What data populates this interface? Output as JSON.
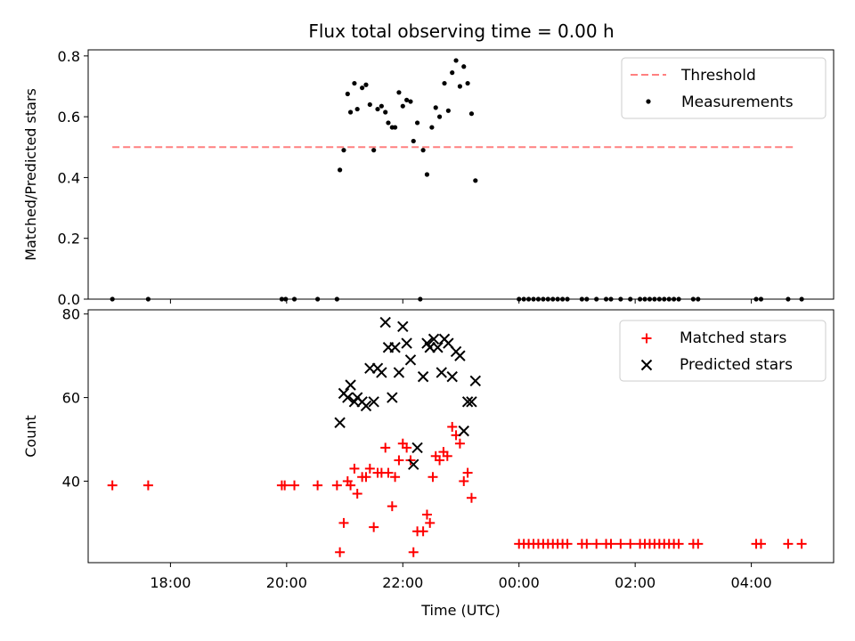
{
  "title": "Flux total observing time = 0.00 h",
  "chart_data": [
    {
      "type": "scatter",
      "ylabel": "Matched/Predicted stars",
      "ylim": [
        0,
        0.82
      ],
      "yticks": [
        0.0,
        0.2,
        0.4,
        0.6,
        0.8
      ],
      "ytick_labels": [
        "0.0",
        "0.2",
        "0.4",
        "0.6",
        "0.8"
      ],
      "legend": "top-right",
      "threshold": {
        "name": "Threshold",
        "value": 0.5,
        "x_range": [
          "17:00",
          "04:45"
        ],
        "color": "#ff8080"
      },
      "series": [
        {
          "name": "Measurements",
          "color": "#000000",
          "points": [
            [
              "17:00",
              0
            ],
            [
              "17:37",
              0
            ],
            [
              "19:55",
              0
            ],
            [
              "19:59",
              0
            ],
            [
              "20:08",
              0
            ],
            [
              "20:32",
              0
            ],
            [
              "20:52",
              0
            ],
            [
              "20:55",
              0.425
            ],
            [
              "20:59",
              0.49
            ],
            [
              "21:03",
              0.675
            ],
            [
              "21:06",
              0.615
            ],
            [
              "21:10",
              0.71
            ],
            [
              "21:13",
              0.625
            ],
            [
              "21:18",
              0.695
            ],
            [
              "21:22",
              0.705
            ],
            [
              "21:26",
              0.64
            ],
            [
              "21:30",
              0.49
            ],
            [
              "21:34",
              0.625
            ],
            [
              "21:38",
              0.635
            ],
            [
              "21:42",
              0.615
            ],
            [
              "21:45",
              0.58
            ],
            [
              "21:49",
              0.565
            ],
            [
              "21:52",
              0.565
            ],
            [
              "21:56",
              0.68
            ],
            [
              "22:00",
              0.635
            ],
            [
              "22:04",
              0.655
            ],
            [
              "22:08",
              0.65
            ],
            [
              "22:11",
              0.52
            ],
            [
              "22:15",
              0.58
            ],
            [
              "22:21",
              0.49
            ],
            [
              "22:25",
              0.41
            ],
            [
              "22:30",
              0.565
            ],
            [
              "22:34",
              0.63
            ],
            [
              "22:38",
              0.6
            ],
            [
              "22:43",
              0.71
            ],
            [
              "22:47",
              0.62
            ],
            [
              "22:51",
              0.745
            ],
            [
              "22:55",
              0.785
            ],
            [
              "22:59",
              0.7
            ],
            [
              "23:03",
              0.765
            ],
            [
              "23:07",
              0.71
            ],
            [
              "23:11",
              0.61
            ],
            [
              "23:15",
              0.39
            ],
            [
              "22:18",
              0
            ],
            [
              "00:00",
              0
            ],
            [
              "00:05",
              0
            ],
            [
              "00:10",
              0
            ],
            [
              "00:15",
              0
            ],
            [
              "00:20",
              0
            ],
            [
              "00:25",
              0
            ],
            [
              "00:30",
              0
            ],
            [
              "00:35",
              0
            ],
            [
              "00:40",
              0
            ],
            [
              "00:45",
              0
            ],
            [
              "00:50",
              0
            ],
            [
              "01:05",
              0
            ],
            [
              "01:10",
              0
            ],
            [
              "01:20",
              0
            ],
            [
              "01:30",
              0
            ],
            [
              "01:35",
              0
            ],
            [
              "01:45",
              0
            ],
            [
              "01:55",
              0
            ],
            [
              "02:05",
              0
            ],
            [
              "02:10",
              0
            ],
            [
              "02:15",
              0
            ],
            [
              "02:20",
              0
            ],
            [
              "02:25",
              0
            ],
            [
              "02:30",
              0
            ],
            [
              "02:35",
              0
            ],
            [
              "02:40",
              0
            ],
            [
              "02:45",
              0
            ],
            [
              "03:00",
              0
            ],
            [
              "03:05",
              0
            ],
            [
              "04:05",
              0
            ],
            [
              "04:10",
              0
            ],
            [
              "04:38",
              0
            ],
            [
              "04:52",
              0
            ]
          ]
        }
      ]
    },
    {
      "type": "scatter",
      "xlabel": "Time (UTC)",
      "ylabel": "Count",
      "ylim": [
        20.5,
        81
      ],
      "yticks": [
        40,
        60,
        80
      ],
      "ytick_labels": [
        "40",
        "60",
        "80"
      ],
      "xticks": [
        "18:00",
        "20:00",
        "22:00",
        "00:00",
        "02:00",
        "04:00"
      ],
      "legend": "top-right",
      "series": [
        {
          "name": "Matched stars",
          "marker": "plus",
          "color": "#ff0000",
          "points": [
            [
              "17:00",
              39
            ],
            [
              "17:37",
              39
            ],
            [
              "19:55",
              39
            ],
            [
              "19:58",
              39
            ],
            [
              "20:08",
              39
            ],
            [
              "20:32",
              39
            ],
            [
              "20:52",
              39
            ],
            [
              "20:55",
              23
            ],
            [
              "20:59",
              30
            ],
            [
              "21:03",
              40
            ],
            [
              "21:06",
              39
            ],
            [
              "21:10",
              43
            ],
            [
              "21:13",
              37
            ],
            [
              "21:18",
              41
            ],
            [
              "21:22",
              41
            ],
            [
              "21:26",
              43
            ],
            [
              "21:30",
              29
            ],
            [
              "21:34",
              42
            ],
            [
              "21:38",
              42
            ],
            [
              "21:42",
              48
            ],
            [
              "21:45",
              42
            ],
            [
              "21:49",
              34
            ],
            [
              "21:52",
              41
            ],
            [
              "21:56",
              45
            ],
            [
              "22:00",
              49
            ],
            [
              "22:04",
              48
            ],
            [
              "22:08",
              45
            ],
            [
              "22:11",
              23
            ],
            [
              "22:15",
              28
            ],
            [
              "22:21",
              28
            ],
            [
              "22:25",
              32
            ],
            [
              "22:28",
              30
            ],
            [
              "22:31",
              41
            ],
            [
              "22:34",
              46
            ],
            [
              "22:38",
              45
            ],
            [
              "22:42",
              47
            ],
            [
              "22:46",
              46
            ],
            [
              "22:51",
              53
            ],
            [
              "22:55",
              51
            ],
            [
              "22:59",
              49
            ],
            [
              "23:03",
              40
            ],
            [
              "23:07",
              42
            ],
            [
              "23:11",
              36
            ],
            [
              "00:00",
              25
            ],
            [
              "00:05",
              25
            ],
            [
              "00:10",
              25
            ],
            [
              "00:15",
              25
            ],
            [
              "00:20",
              25
            ],
            [
              "00:25",
              25
            ],
            [
              "00:30",
              25
            ],
            [
              "00:35",
              25
            ],
            [
              "00:40",
              25
            ],
            [
              "00:45",
              25
            ],
            [
              "00:50",
              25
            ],
            [
              "01:05",
              25
            ],
            [
              "01:10",
              25
            ],
            [
              "01:20",
              25
            ],
            [
              "01:30",
              25
            ],
            [
              "01:35",
              25
            ],
            [
              "01:45",
              25
            ],
            [
              "01:55",
              25
            ],
            [
              "02:05",
              25
            ],
            [
              "02:10",
              25
            ],
            [
              "02:15",
              25
            ],
            [
              "02:20",
              25
            ],
            [
              "02:25",
              25
            ],
            [
              "02:30",
              25
            ],
            [
              "02:35",
              25
            ],
            [
              "02:40",
              25
            ],
            [
              "02:45",
              25
            ],
            [
              "03:00",
              25
            ],
            [
              "03:05",
              25
            ],
            [
              "04:05",
              25
            ],
            [
              "04:10",
              25
            ],
            [
              "04:38",
              25
            ],
            [
              "04:52",
              25
            ]
          ]
        },
        {
          "name": "Predicted stars",
          "marker": "x",
          "color": "#000000",
          "points": [
            [
              "20:55",
              54
            ],
            [
              "20:59",
              61
            ],
            [
              "21:03",
              60
            ],
            [
              "21:06",
              63
            ],
            [
              "21:10",
              59
            ],
            [
              "21:13",
              60
            ],
            [
              "21:18",
              59
            ],
            [
              "21:22",
              58
            ],
            [
              "21:26",
              67
            ],
            [
              "21:30",
              59
            ],
            [
              "21:34",
              67
            ],
            [
              "21:38",
              66
            ],
            [
              "21:42",
              78
            ],
            [
              "21:45",
              72
            ],
            [
              "21:49",
              60
            ],
            [
              "21:52",
              72
            ],
            [
              "21:56",
              66
            ],
            [
              "22:00",
              77
            ],
            [
              "22:04",
              73
            ],
            [
              "22:08",
              69
            ],
            [
              "22:11",
              44
            ],
            [
              "22:15",
              48
            ],
            [
              "22:21",
              65
            ],
            [
              "22:25",
              73
            ],
            [
              "22:28",
              72
            ],
            [
              "22:32",
              74
            ],
            [
              "22:36",
              72
            ],
            [
              "22:40",
              66
            ],
            [
              "22:43",
              74
            ],
            [
              "22:47",
              73
            ],
            [
              "22:51",
              65
            ],
            [
              "22:55",
              71
            ],
            [
              "22:59",
              70
            ],
            [
              "23:03",
              52
            ],
            [
              "23:07",
              59
            ],
            [
              "23:11",
              59
            ],
            [
              "23:15",
              64
            ]
          ]
        }
      ]
    }
  ]
}
